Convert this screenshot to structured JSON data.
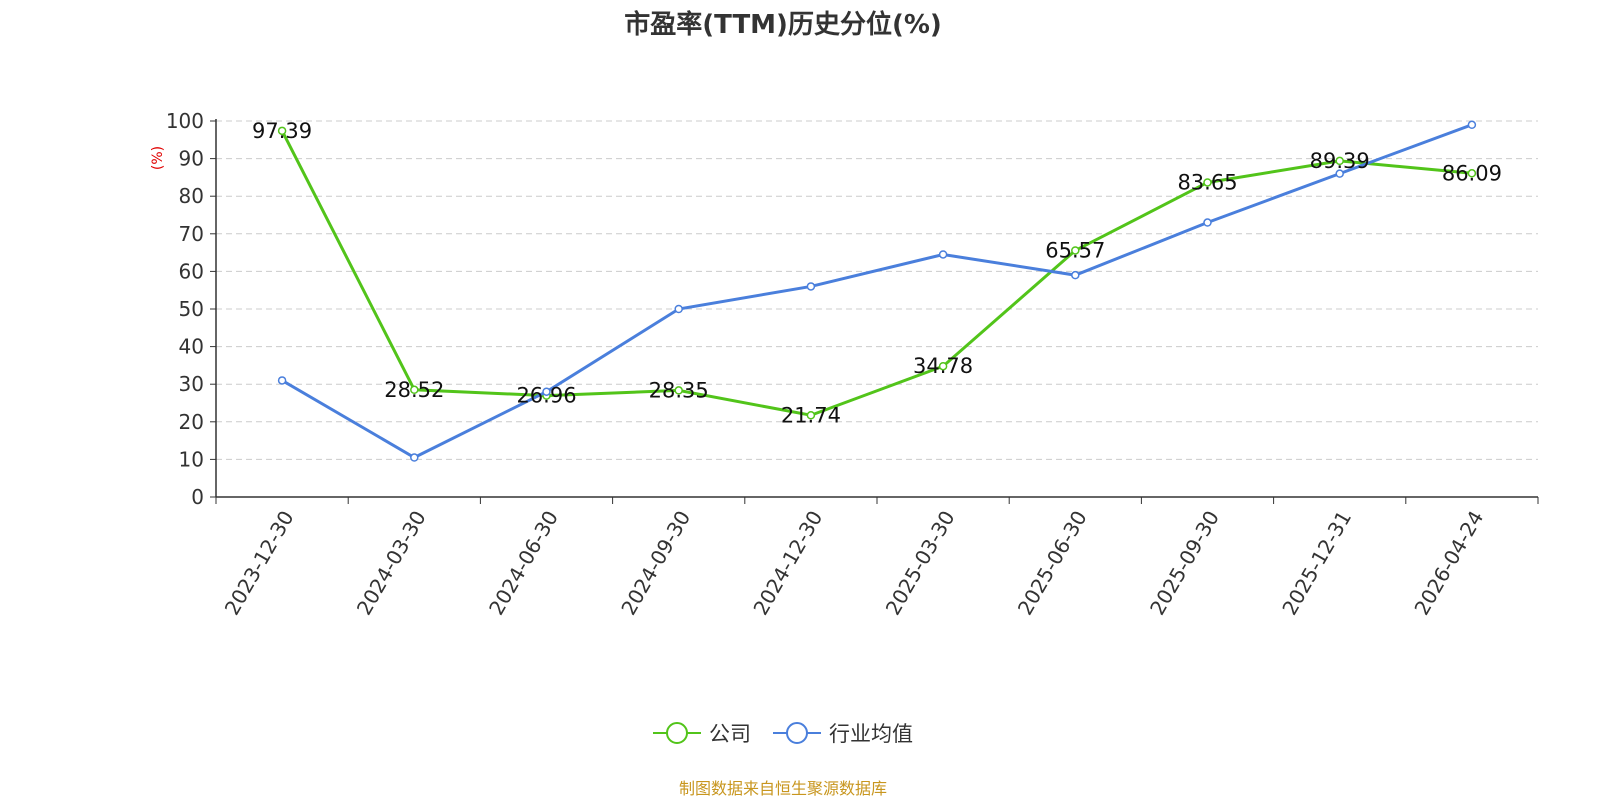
{
  "chart_data": {
    "type": "line",
    "title": "市盈率(TTM)历史分位(%)",
    "ylabel": "(%)",
    "ylim": [
      0,
      100
    ],
    "yticks": [
      0,
      10,
      20,
      30,
      40,
      50,
      60,
      70,
      80,
      90,
      100
    ],
    "categories": [
      "2023-12-30",
      "2024-03-30",
      "2024-06-30",
      "2024-09-30",
      "2024-12-30",
      "2025-03-30",
      "2025-06-30",
      "2025-09-30",
      "2025-12-31",
      "2026-04-24"
    ],
    "grid": true,
    "legend_position": "bottom",
    "series": [
      {
        "name": "公司",
        "color": "#52c41a",
        "values": [
          97.39,
          28.52,
          26.96,
          28.35,
          21.74,
          34.78,
          65.57,
          83.65,
          89.39,
          86.09
        ],
        "labels": [
          "97.39",
          "28.52",
          "26.96",
          "28.35",
          "21.74",
          "34.78",
          "65.57",
          "83.65",
          "89.39",
          "86.09"
        ]
      },
      {
        "name": "行业均值",
        "color": "#4a7fdc",
        "values": [
          31,
          10.5,
          28,
          50,
          56,
          64.5,
          59,
          73,
          86,
          99
        ]
      }
    ]
  },
  "ylabel_color": "#e00000",
  "footer": {
    "text": "制图数据来自恒生聚源数据库",
    "color": "#c8961e"
  }
}
